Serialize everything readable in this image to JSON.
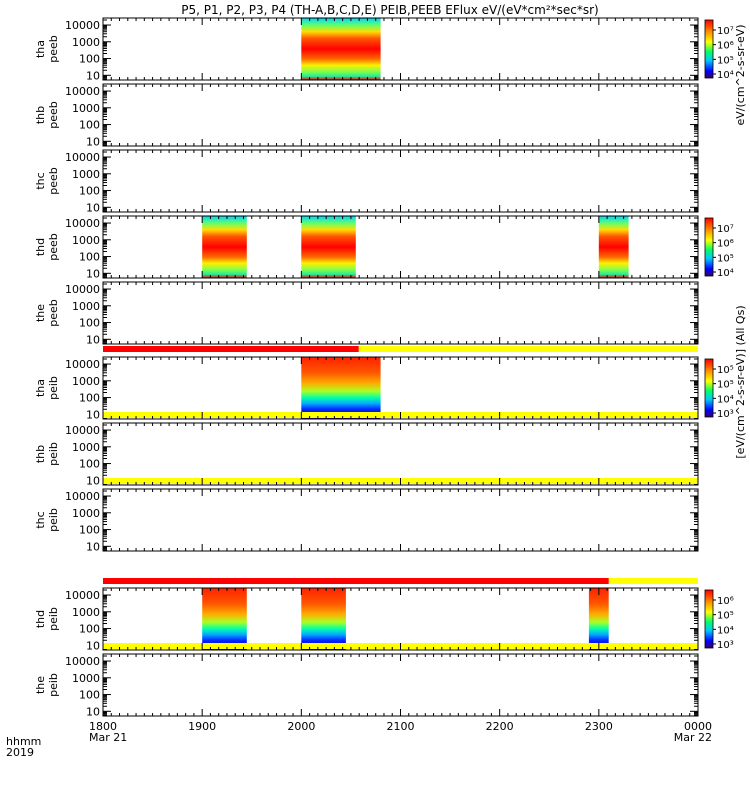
{
  "title": "P5, P1, P2, P3, P4 (TH-A,B,C,D,E) PEIB,PEEB EFlux eV/(eV*cm²*sec*sr)",
  "colorbar_unit_top": "eV/(cm^2-s-sr-eV)",
  "colorbar_unit_full": "[eV/(cm^2-s-sr-eV)] (All Qs)",
  "time_axis": {
    "label_line1": "hhmm",
    "label_line2": "2019",
    "ticks": [
      {
        "value": "1800",
        "date": "Mar 21"
      },
      {
        "value": "1900",
        "date": ""
      },
      {
        "value": "2000",
        "date": ""
      },
      {
        "value": "2100",
        "date": ""
      },
      {
        "value": "2200",
        "date": ""
      },
      {
        "value": "2300",
        "date": ""
      },
      {
        "value": "0000",
        "date": "Mar 22"
      }
    ],
    "start_hour": 18,
    "end_hour": 24
  },
  "flag_colors": {
    "red": "#ff0000",
    "yellow": "#ffff00"
  },
  "chart_data": {
    "type": "heatmap",
    "y_scale": "log",
    "y_ticks": [
      "10",
      "100",
      "1000",
      "10000"
    ],
    "panels": [
      {
        "label1": "tha",
        "label2": "peeb",
        "blocks": [
          [
            20.0,
            20.8
          ]
        ],
        "colorbar": {
          "ticks": [
            "10⁷",
            "10⁶",
            "10⁵",
            "10⁴"
          ]
        }
      },
      {
        "label1": "thb",
        "label2": "peeb",
        "blocks": [],
        "colorbar": null
      },
      {
        "label1": "thc",
        "label2": "peeb",
        "blocks": [],
        "colorbar": null
      },
      {
        "label1": "thd",
        "label2": "peeb",
        "blocks": [
          [
            19.0,
            19.45
          ],
          [
            20.0,
            20.55
          ],
          [
            23.0,
            23.3
          ]
        ],
        "colorbar": {
          "ticks": [
            "10⁷",
            "10⁶",
            "10⁵",
            "10⁴"
          ]
        }
      },
      {
        "label1": "the",
        "label2": "peeb",
        "blocks": [],
        "colorbar": null
      },
      {
        "label1": "tha",
        "label2": "peib",
        "blocks": [
          [
            20.0,
            20.8
          ]
        ],
        "colorbar": {
          "ticks": [
            "10⁵",
            "10⁵",
            "10⁴",
            "10³"
          ]
        }
      },
      {
        "label1": "thb",
        "label2": "peib",
        "blocks": [],
        "colorbar": null
      },
      {
        "label1": "thc",
        "label2": "peib",
        "blocks": [],
        "colorbar": null
      },
      {
        "label1": "thd",
        "label2": "peib",
        "blocks": [
          [
            19.0,
            19.45
          ],
          [
            20.0,
            20.45
          ],
          [
            22.9,
            23.1
          ]
        ],
        "colorbar": {
          "ticks": [
            "10⁶",
            "10⁵",
            "10⁴",
            "10³"
          ]
        }
      },
      {
        "label1": "the",
        "label2": "peib",
        "blocks": [],
        "colorbar": null
      }
    ],
    "flag_bars": [
      {
        "after_panel": 4,
        "red_until_hour": 20.58
      },
      {
        "after_panel": 5,
        "red_until_hour": 18.0
      },
      {
        "after_panel": 6,
        "red_until_hour": 18.0
      },
      {
        "after_panel": 7,
        "red_until_hour": 23.1
      },
      {
        "after_panel": 8,
        "red_until_hour": 18.0
      }
    ]
  }
}
